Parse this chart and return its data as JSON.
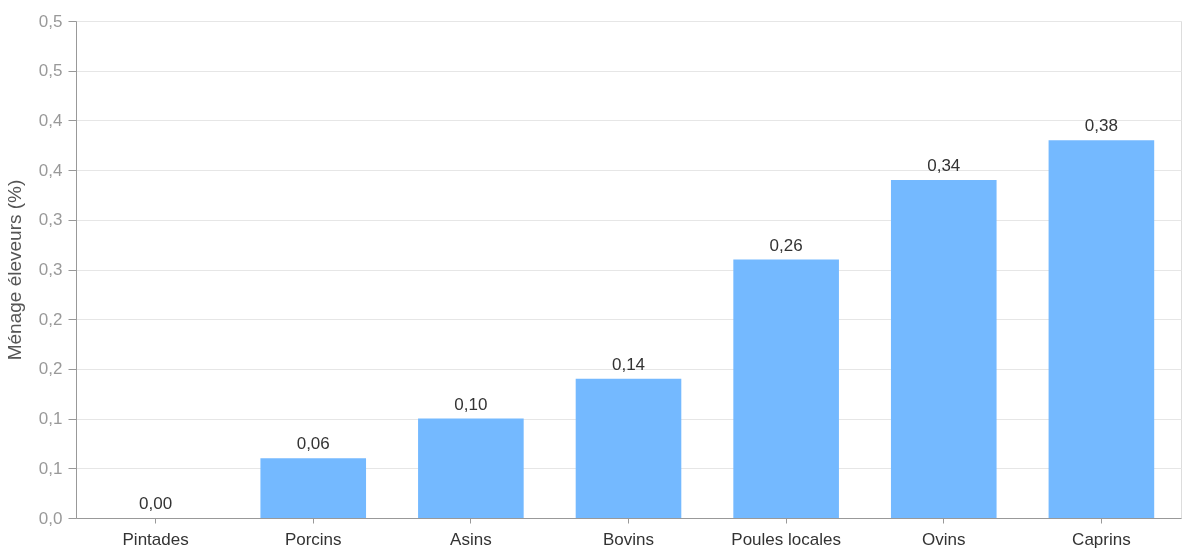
{
  "chart_data": {
    "type": "bar",
    "ylabel": "Ménage éleveurs (%)",
    "categories": [
      "Pintades",
      "Porcins",
      "Asins",
      "Bovins",
      "Poules locales",
      "Ovins",
      "Caprins"
    ],
    "values": [
      0.0,
      0.06,
      0.1,
      0.14,
      0.26,
      0.34,
      0.38
    ],
    "value_labels": [
      "0,00",
      "0,06",
      "0,10",
      "0,14",
      "0,26",
      "0,34",
      "0,38"
    ],
    "color": "#74b9ff",
    "ylim": [
      0,
      0.5
    ],
    "yticks": [
      {
        "value": 0,
        "label": "0,0"
      },
      {
        "value": 0.05,
        "label": "0,1"
      },
      {
        "value": 0.1,
        "label": "0,1"
      },
      {
        "value": 0.15,
        "label": "0,2"
      },
      {
        "value": 0.2,
        "label": "0,2"
      },
      {
        "value": 0.25,
        "label": "0,3"
      },
      {
        "value": 0.3,
        "label": "0,3"
      },
      {
        "value": 0.35,
        "label": "0,4"
      },
      {
        "value": 0.4,
        "label": "0,4"
      },
      {
        "value": 0.45,
        "label": "0,5"
      },
      {
        "value": 0.5,
        "label": "0,5"
      }
    ],
    "grid": "y"
  }
}
